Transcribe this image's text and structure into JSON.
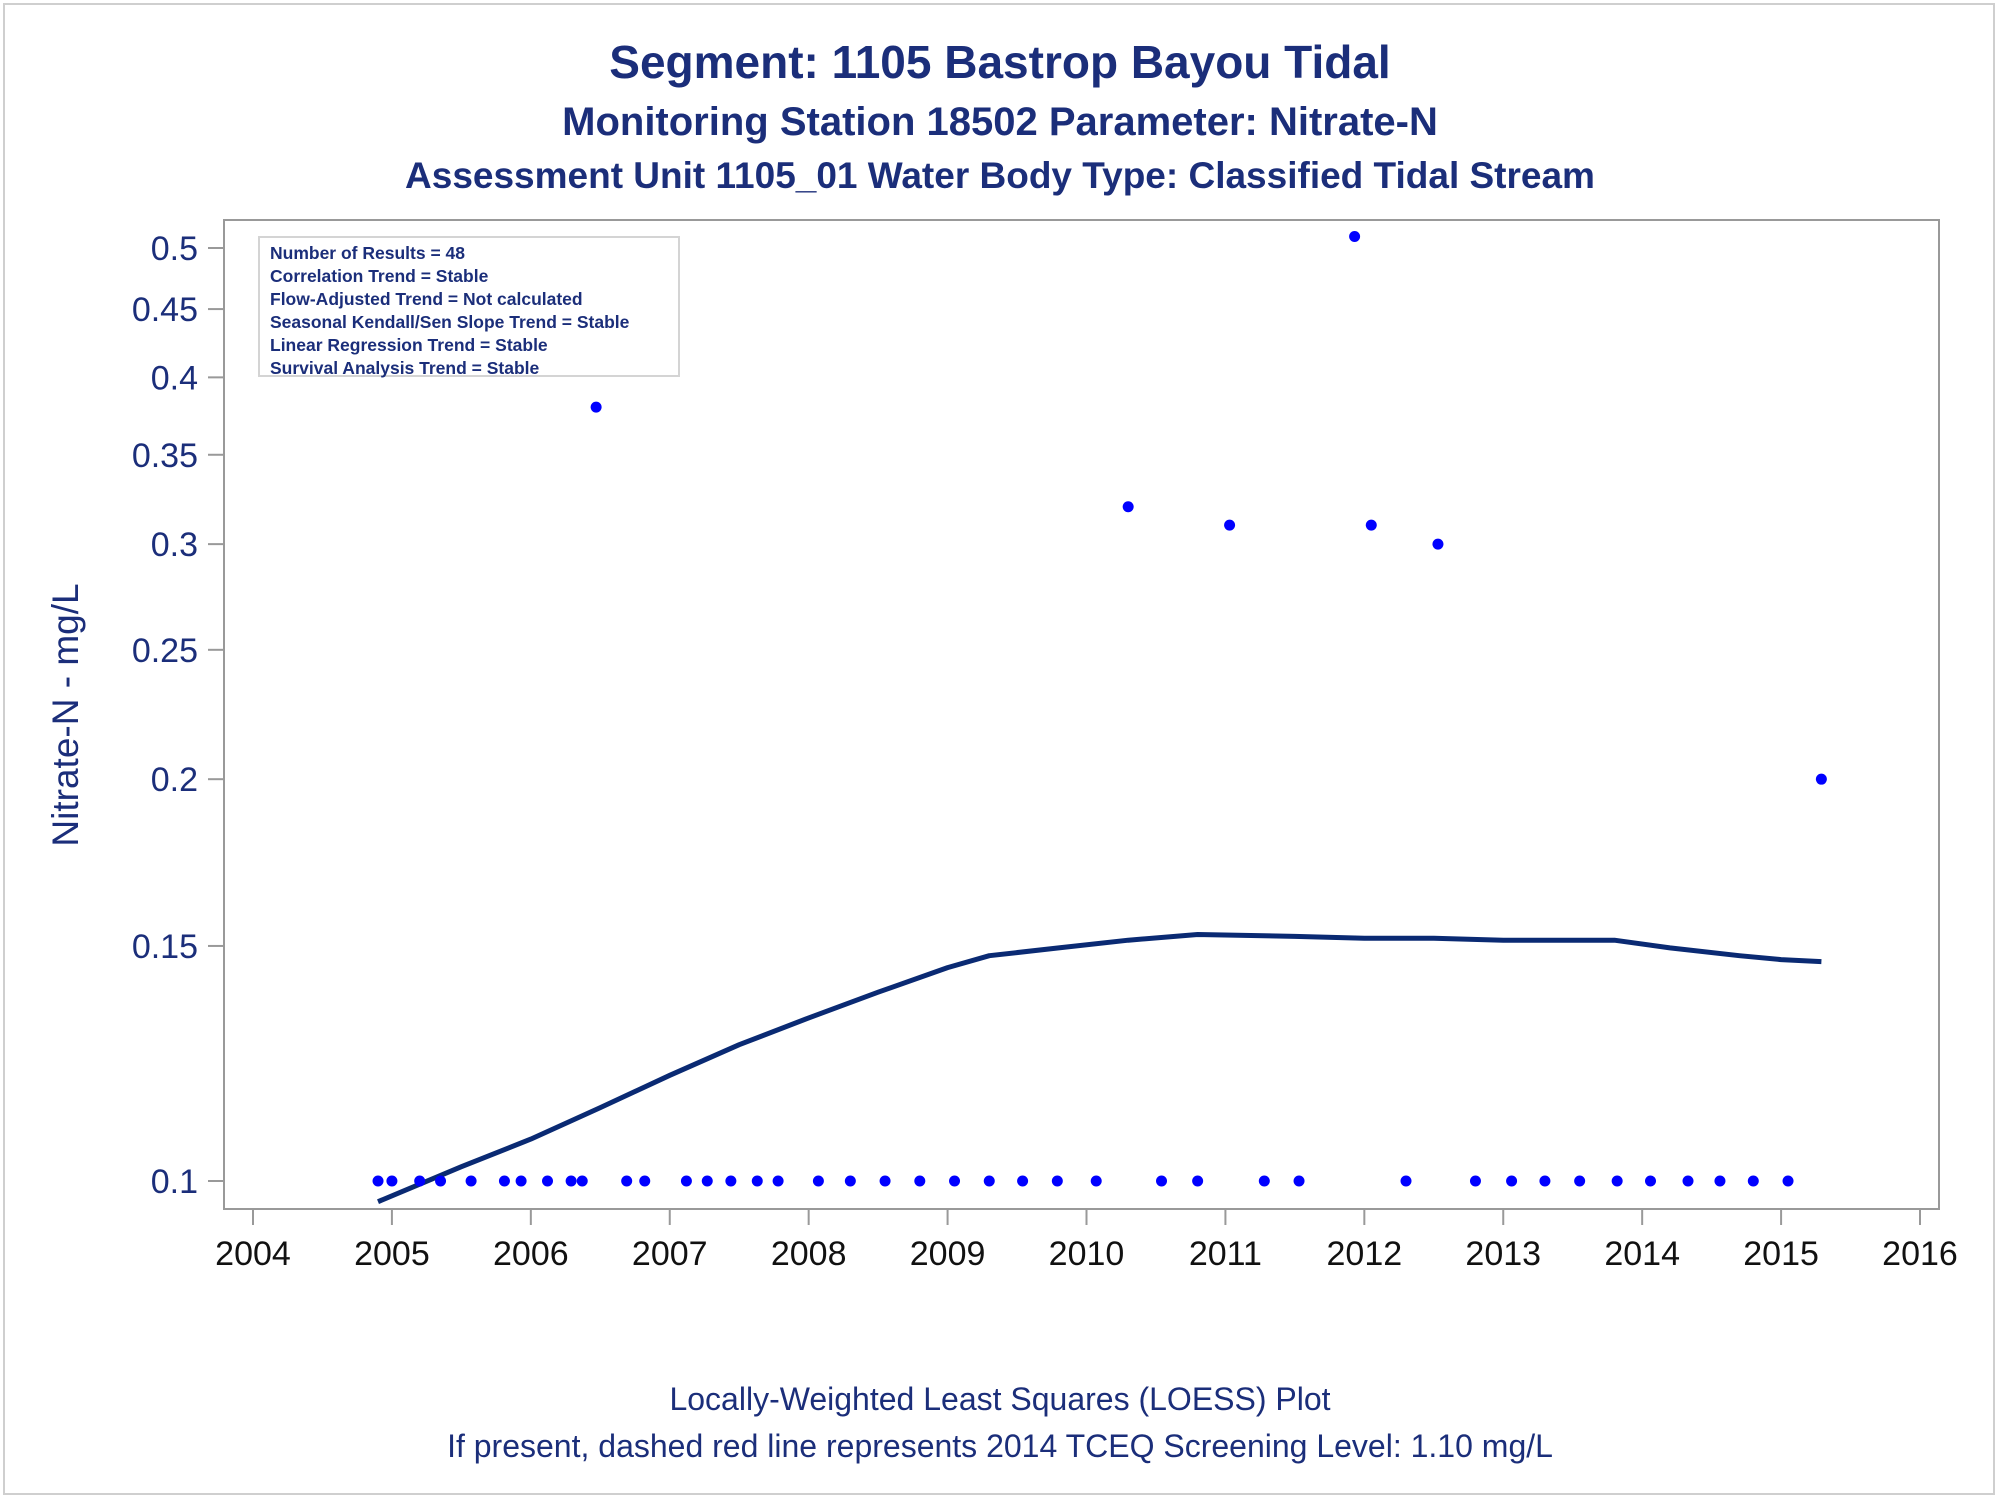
{
  "titles": {
    "line1": "Segment: 1105  Bastrop Bayou Tidal",
    "line2": "Monitoring Station 18502 Parameter: Nitrate-N",
    "line3": "Assessment Unit 1105_01   Water Body Type: Classified Tidal Stream"
  },
  "footer": {
    "line1": "Locally-Weighted Least Squares (LOESS) Plot",
    "line2": "If present, dashed red line represents 2014 TCEQ Screening Level: 1.10 mg/L"
  },
  "info_box": [
    "Number of Results = 48",
    "Correlation Trend = Stable",
    "Flow-Adjusted Trend = Not calculated",
    "Seasonal Kendall/Sen Slope Trend = Stable",
    "Linear Regression Trend = Stable",
    "Survival Analysis Trend = Stable"
  ],
  "colors": {
    "points": "#0000ff",
    "loess": "#0a2a73",
    "text": "#1b2e7a",
    "axis": "#999999"
  },
  "chart_data": {
    "type": "scatter",
    "ylabel": "Nitrate-N - mg/L",
    "xlabel": "",
    "x_scale": "linear (year)",
    "y_scale": "log",
    "xlim": [
      2004,
      2016
    ],
    "ylim": [
      0.0963,
      0.513
    ],
    "x_ticks": [
      2004,
      2005,
      2006,
      2007,
      2008,
      2009,
      2010,
      2011,
      2012,
      2013,
      2014,
      2015,
      2016
    ],
    "y_ticks": [
      0.1,
      0.15,
      0.2,
      0.25,
      0.3,
      0.35,
      0.4,
      0.45,
      0.5
    ],
    "y_tick_labels": [
      "0.1",
      "0.15",
      "0.2",
      "0.25",
      "0.3",
      "0.35",
      "0.4",
      "0.45",
      "0.5"
    ],
    "grid": false,
    "series": [
      {
        "type": "scatter",
        "points": [
          [
            2004.9,
            0.1
          ],
          [
            2005.0,
            0.1
          ],
          [
            2005.2,
            0.1
          ],
          [
            2005.35,
            0.1
          ],
          [
            2005.57,
            0.1
          ],
          [
            2005.81,
            0.1
          ],
          [
            2005.93,
            0.1
          ],
          [
            2006.12,
            0.1
          ],
          [
            2006.29,
            0.1
          ],
          [
            2006.37,
            0.1
          ],
          [
            2006.47,
            0.38
          ],
          [
            2006.69,
            0.1
          ],
          [
            2006.82,
            0.1
          ],
          [
            2007.12,
            0.1
          ],
          [
            2007.27,
            0.1
          ],
          [
            2007.44,
            0.1
          ],
          [
            2007.63,
            0.1
          ],
          [
            2007.78,
            0.1
          ],
          [
            2008.07,
            0.1
          ],
          [
            2008.3,
            0.1
          ],
          [
            2008.55,
            0.1
          ],
          [
            2008.8,
            0.1
          ],
          [
            2009.05,
            0.1
          ],
          [
            2009.3,
            0.1
          ],
          [
            2009.54,
            0.1
          ],
          [
            2009.79,
            0.1
          ],
          [
            2010.07,
            0.1
          ],
          [
            2010.3,
            0.32
          ],
          [
            2010.54,
            0.1
          ],
          [
            2010.8,
            0.1
          ],
          [
            2011.03,
            0.31
          ],
          [
            2011.28,
            0.1
          ],
          [
            2011.53,
            0.1
          ],
          [
            2011.93,
            0.51
          ],
          [
            2012.05,
            0.31
          ],
          [
            2012.3,
            0.1
          ],
          [
            2012.53,
            0.3
          ],
          [
            2012.8,
            0.1
          ],
          [
            2013.06,
            0.1
          ],
          [
            2013.3,
            0.1
          ],
          [
            2013.55,
            0.1
          ],
          [
            2013.82,
            0.1
          ],
          [
            2014.06,
            0.1
          ],
          [
            2014.33,
            0.1
          ],
          [
            2014.56,
            0.1
          ],
          [
            2014.8,
            0.1
          ],
          [
            2015.05,
            0.1
          ],
          [
            2015.29,
            0.2
          ]
        ]
      },
      {
        "type": "line",
        "points": [
          [
            2004.9,
            0.0965
          ],
          [
            2005.5,
            0.1025
          ],
          [
            2006.0,
            0.1075
          ],
          [
            2006.5,
            0.1135
          ],
          [
            2007.0,
            0.12
          ],
          [
            2007.5,
            0.1265
          ],
          [
            2008.0,
            0.1325
          ],
          [
            2008.5,
            0.1385
          ],
          [
            2009.0,
            0.1445
          ],
          [
            2009.3,
            0.1475
          ],
          [
            2009.8,
            0.1495
          ],
          [
            2010.3,
            0.1515
          ],
          [
            2010.8,
            0.153
          ],
          [
            2011.5,
            0.1525
          ],
          [
            2012.0,
            0.152
          ],
          [
            2012.5,
            0.152
          ],
          [
            2013.0,
            0.1515
          ],
          [
            2013.5,
            0.1515
          ],
          [
            2013.8,
            0.1515
          ],
          [
            2014.2,
            0.1495
          ],
          [
            2014.7,
            0.1475
          ],
          [
            2015.0,
            0.1465
          ],
          [
            2015.29,
            0.146
          ]
        ]
      }
    ]
  }
}
